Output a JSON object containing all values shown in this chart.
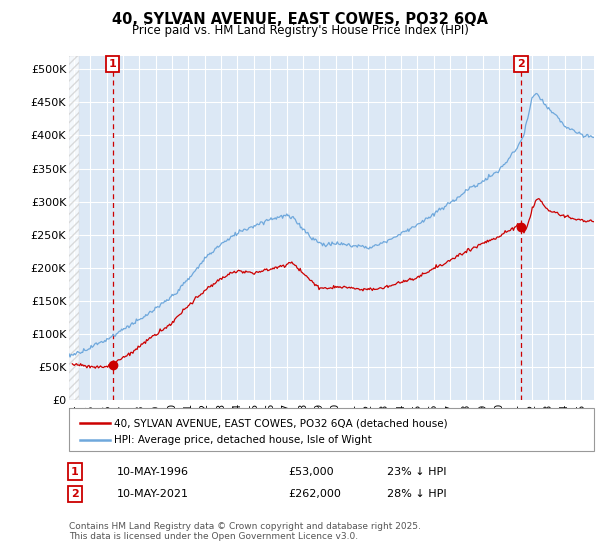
{
  "title": "40, SYLVAN AVENUE, EAST COWES, PO32 6QA",
  "subtitle": "Price paid vs. HM Land Registry's House Price Index (HPI)",
  "ylabel_ticks": [
    "£0",
    "£50K",
    "£100K",
    "£150K",
    "£200K",
    "£250K",
    "£300K",
    "£350K",
    "£400K",
    "£450K",
    "£500K"
  ],
  "ytick_values": [
    0,
    50000,
    100000,
    150000,
    200000,
    250000,
    300000,
    350000,
    400000,
    450000,
    500000
  ],
  "ylim": [
    0,
    520000
  ],
  "xlim_start": 1993.7,
  "xlim_end": 2025.8,
  "background_color": "#ffffff",
  "plot_bg_color": "#dce8f5",
  "grid_color": "#ffffff",
  "hpi_color": "#6fa8dc",
  "price_color": "#cc0000",
  "sale1_x": 1996.36,
  "sale1_y": 53000,
  "sale2_x": 2021.36,
  "sale2_y": 262000,
  "legend_label1": "40, SYLVAN AVENUE, EAST COWES, PO32 6QA (detached house)",
  "legend_label2": "HPI: Average price, detached house, Isle of Wight",
  "table_row1": [
    "1",
    "10-MAY-1996",
    "£53,000",
    "23% ↓ HPI"
  ],
  "table_row2": [
    "2",
    "10-MAY-2021",
    "£262,000",
    "28% ↓ HPI"
  ],
  "footer": "Contains HM Land Registry data © Crown copyright and database right 2025.\nThis data is licensed under the Open Government Licence v3.0.",
  "xtick_years": [
    1994,
    1995,
    1996,
    1997,
    1998,
    1999,
    2000,
    2001,
    2002,
    2003,
    2004,
    2005,
    2006,
    2007,
    2008,
    2009,
    2010,
    2011,
    2012,
    2013,
    2014,
    2015,
    2016,
    2017,
    2018,
    2019,
    2020,
    2021,
    2022,
    2023,
    2024,
    2025
  ],
  "hpi_nodes_x": [
    1993.7,
    1994,
    1995,
    1996,
    1997,
    1998,
    1999,
    2000,
    2001,
    2002,
    2003,
    2004,
    2005,
    2006,
    2007,
    2007.5,
    2008,
    2008.5,
    2009,
    2009.5,
    2010,
    2011,
    2012,
    2013,
    2014,
    2015,
    2016,
    2017,
    2018,
    2019,
    2020,
    2020.5,
    2021,
    2021.5,
    2022,
    2022.3,
    2022.7,
    2023,
    2023.5,
    2024,
    2024.5,
    2025,
    2025.8
  ],
  "hpi_nodes_y": [
    68000,
    70000,
    80000,
    93000,
    108000,
    122000,
    138000,
    155000,
    180000,
    210000,
    235000,
    252000,
    262000,
    272000,
    278000,
    272000,
    258000,
    245000,
    235000,
    232000,
    235000,
    230000,
    228000,
    235000,
    248000,
    262000,
    278000,
    295000,
    315000,
    330000,
    345000,
    360000,
    378000,
    400000,
    455000,
    462000,
    450000,
    440000,
    430000,
    415000,
    408000,
    400000,
    398000
  ],
  "price_nodes_x": [
    1993.9,
    1994.2,
    1995,
    1996,
    1996.36,
    1997,
    1998,
    1999,
    2000,
    2001,
    2002,
    2003,
    2004,
    2005,
    2006,
    2007,
    2007.3,
    2007.6,
    2008,
    2008.5,
    2009,
    2009.5,
    2010,
    2011,
    2012,
    2013,
    2014,
    2015,
    2016,
    2017,
    2018,
    2019,
    2020,
    2020.5,
    2021,
    2021.2,
    2021.36,
    2021.5,
    2021.8,
    2022,
    2022.3,
    2022.5,
    2022.8,
    2023,
    2023.5,
    2024,
    2024.5,
    2025,
    2025.8
  ],
  "price_nodes_y": [
    55000,
    54000,
    52000,
    50000,
    53000,
    65000,
    82000,
    102000,
    120000,
    145000,
    168000,
    185000,
    198000,
    195000,
    200000,
    208000,
    212000,
    205000,
    196000,
    183000,
    172000,
    170000,
    173000,
    170000,
    168000,
    172000,
    180000,
    188000,
    200000,
    213000,
    228000,
    242000,
    252000,
    258000,
    265000,
    270000,
    262000,
    255000,
    270000,
    290000,
    308000,
    305000,
    295000,
    290000,
    283000,
    278000,
    276000,
    273000,
    270000
  ]
}
